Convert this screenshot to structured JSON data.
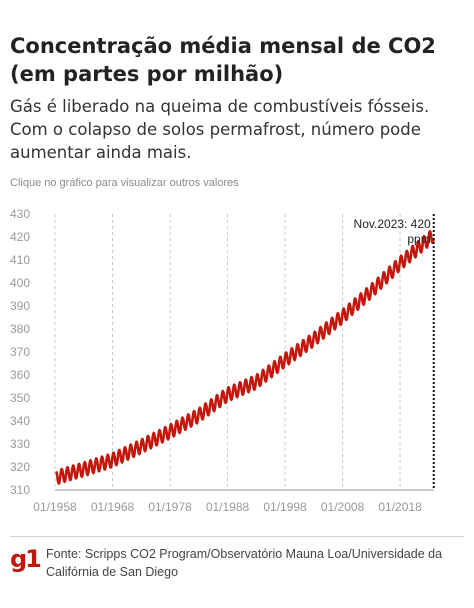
{
  "header": {
    "title": "Concentração média mensal de CO2 (em partes por milhão)",
    "subtitle": "Gás é liberado na queima de combustíveis fósseis. Com o colapso de solos permafrost, número pode aumentar ainda mais.",
    "hint": "Clique no gráfico para visualizar outros valores"
  },
  "chart_data": {
    "type": "line",
    "x_range": [
      1958,
      2023.9
    ],
    "ylim": [
      310,
      430
    ],
    "y_ticks": [
      310,
      320,
      330,
      340,
      350,
      360,
      370,
      380,
      390,
      400,
      410,
      420,
      430
    ],
    "x_ticks": [
      "01/1958",
      "01/1968",
      "01/1978",
      "01/1988",
      "01/1998",
      "01/2008",
      "01/2018"
    ],
    "x_tick_years": [
      1958,
      1968,
      1978,
      1988,
      1998,
      2008,
      2018
    ],
    "grid": "vertical-dashed",
    "series": [
      {
        "color": "#c4170c",
        "seasonal_amplitude_ppm": 3.0,
        "annual_trend": [
          {
            "x": 1958,
            "y": 315.3
          },
          {
            "x": 1963,
            "y": 319.0
          },
          {
            "x": 1968,
            "y": 323.0
          },
          {
            "x": 1973,
            "y": 329.0
          },
          {
            "x": 1978,
            "y": 335.4
          },
          {
            "x": 1983,
            "y": 342.5
          },
          {
            "x": 1988,
            "y": 351.5
          },
          {
            "x": 1993,
            "y": 357.0
          },
          {
            "x": 1998,
            "y": 366.5
          },
          {
            "x": 2003,
            "y": 375.5
          },
          {
            "x": 2008,
            "y": 385.5
          },
          {
            "x": 2013,
            "y": 396.5
          },
          {
            "x": 2018,
            "y": 408.5
          },
          {
            "x": 2023.9,
            "y": 421.0
          }
        ]
      }
    ],
    "annotation": {
      "x": 2023.85,
      "y": 420,
      "text": "Nov.2023: 420 ppm"
    }
  },
  "footer": {
    "logo": "g1",
    "source": "Fonte: Scripps CO2 Program/Observatório Mauna Loa/Universidade da Califórnia de San Diego"
  }
}
